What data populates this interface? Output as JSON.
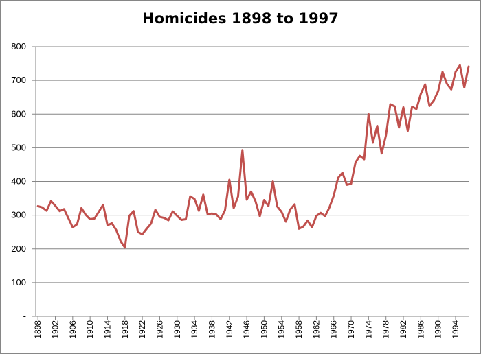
{
  "chart_data": {
    "type": "line",
    "title": "Homicides 1898 to 1997",
    "xlabel": "",
    "ylabel": "",
    "ylim": [
      0,
      800
    ],
    "grid": true,
    "legend": "none",
    "y_tick_labels": [
      "-",
      "100",
      "200",
      "300",
      "400",
      "500",
      "600",
      "700",
      "800"
    ],
    "x_tick_labels": [
      "1898",
      "1902",
      "1906",
      "1910",
      "1914",
      "1918",
      "1922",
      "1926",
      "1930",
      "1934",
      "1938",
      "1942",
      "1946",
      "1950",
      "1954",
      "1958",
      "1962",
      "1966",
      "1970",
      "1974",
      "1978",
      "1982",
      "1986",
      "1990",
      "1994"
    ],
    "x": [
      1898,
      1899,
      1900,
      1901,
      1902,
      1903,
      1904,
      1905,
      1906,
      1907,
      1908,
      1909,
      1910,
      1911,
      1912,
      1913,
      1914,
      1915,
      1916,
      1917,
      1918,
      1919,
      1920,
      1921,
      1922,
      1923,
      1924,
      1925,
      1926,
      1927,
      1928,
      1929,
      1930,
      1931,
      1932,
      1933,
      1934,
      1935,
      1936,
      1937,
      1938,
      1939,
      1940,
      1941,
      1942,
      1943,
      1944,
      1945,
      1946,
      1947,
      1948,
      1949,
      1950,
      1951,
      1952,
      1953,
      1954,
      1955,
      1956,
      1957,
      1958,
      1959,
      1960,
      1961,
      1962,
      1963,
      1964,
      1965,
      1966,
      1967,
      1968,
      1969,
      1970,
      1971,
      1972,
      1973,
      1974,
      1975,
      1976,
      1977,
      1978,
      1979,
      1980,
      1981,
      1982,
      1983,
      1984,
      1985,
      1986,
      1987,
      1988,
      1989,
      1990,
      1991,
      1992,
      1993,
      1994,
      1995,
      1996,
      1997
    ],
    "series": [
      {
        "color": "#c0504d",
        "values": [
          327,
          323,
          313,
          342,
          328,
          312,
          318,
          291,
          264,
          273,
          321,
          301,
          288,
          290,
          310,
          331,
          270,
          276,
          256,
          223,
          204,
          298,
          312,
          250,
          243,
          260,
          275,
          316,
          295,
          292,
          285,
          311,
          298,
          286,
          288,
          356,
          348,
          313,
          361,
          303,
          305,
          302,
          288,
          314,
          405,
          321,
          355,
          493,
          346,
          370,
          342,
          297,
          345,
          327,
          400,
          326,
          310,
          281,
          317,
          332,
          260,
          266,
          284,
          264,
          298,
          307,
          297,
          323,
          358,
          411,
          426,
          390,
          393,
          457,
          476,
          466,
          600,
          515,
          565,
          483,
          537,
          629,
          623,
          560,
          620,
          550,
          622,
          615,
          660,
          688,
          624,
          640,
          668,
          725,
          690,
          673,
          725,
          745,
          679,
          741
        ]
      }
    ]
  }
}
